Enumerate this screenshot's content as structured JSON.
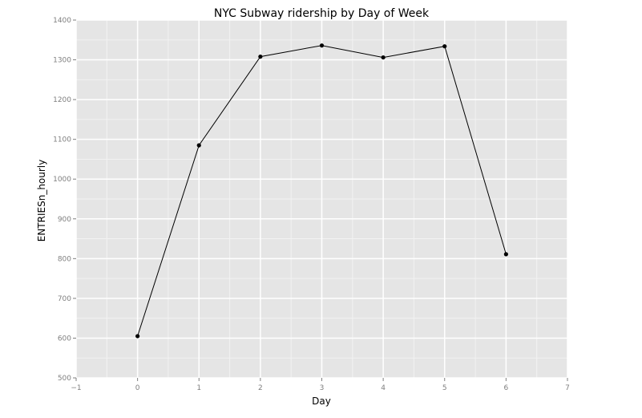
{
  "chart_data": {
    "type": "line",
    "title": "NYC Subway ridership by Day of Week",
    "xlabel": "Day",
    "ylabel": "ENTRIESn_hourly",
    "xlim": [
      -1,
      7
    ],
    "ylim": [
      500,
      1400
    ],
    "x_ticks": [
      -1,
      0,
      1,
      2,
      3,
      4,
      5,
      6,
      7
    ],
    "x_tick_labels": [
      "−1",
      "0",
      "1",
      "2",
      "3",
      "4",
      "5",
      "6",
      "7"
    ],
    "y_ticks": [
      500,
      600,
      700,
      800,
      900,
      1000,
      1100,
      1200,
      1300,
      1400
    ],
    "y_tick_labels": [
      "500",
      "600",
      "700",
      "800",
      "900",
      "1000",
      "1100",
      "1200",
      "1300",
      "1400"
    ],
    "grid": true,
    "series": [
      {
        "x": [
          0,
          1,
          2,
          3,
          4,
          5,
          6
        ],
        "y": [
          605,
          1085,
          1308,
          1336,
          1306,
          1334,
          811
        ],
        "color": "#000000"
      }
    ],
    "colors": {
      "panel_background": "#e5e5e5",
      "grid_major": "#ffffff",
      "grid_minor": "#f2f2f2",
      "tick_text": "#7f7f7f",
      "line": "#000000"
    }
  }
}
